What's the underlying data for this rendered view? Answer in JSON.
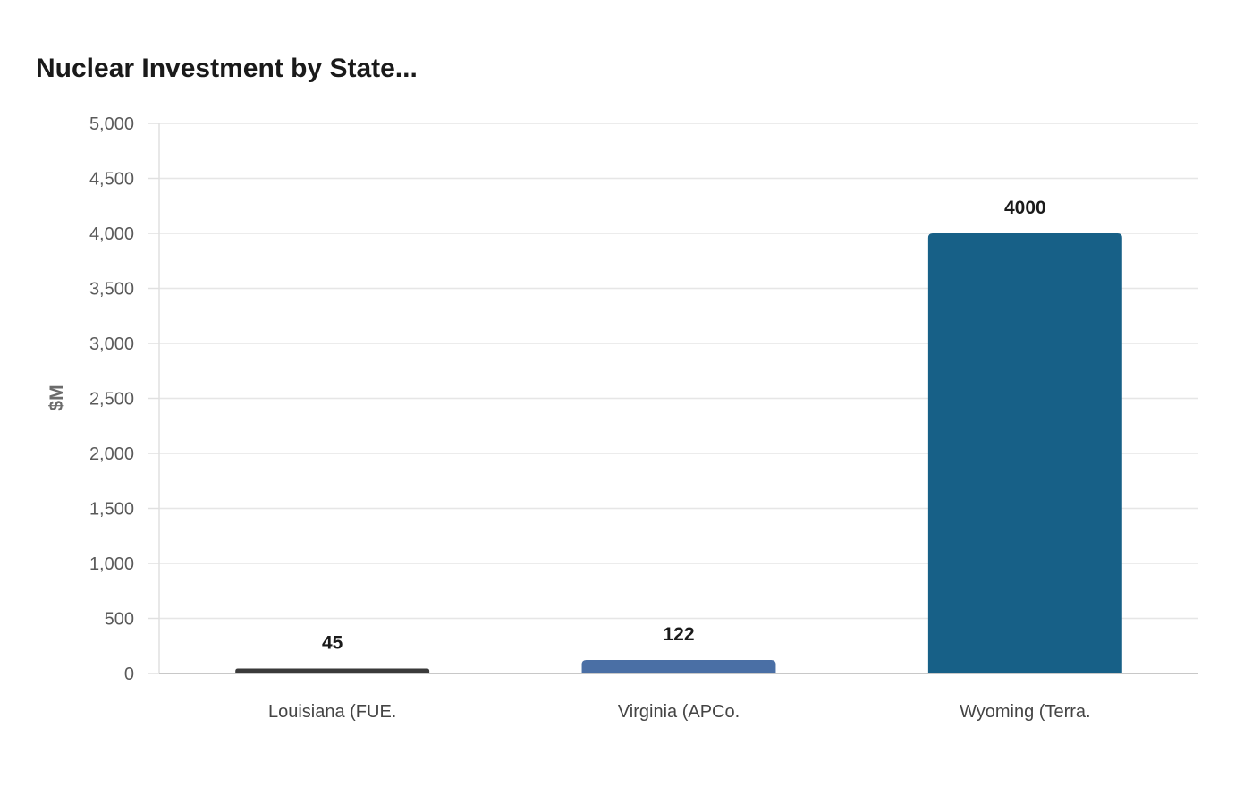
{
  "chart_data": {
    "type": "bar",
    "title": "Nuclear Investment by State...",
    "ylabel": "$M",
    "xlabel": "",
    "ylim": [
      0,
      5000
    ],
    "yticks": [
      0,
      500,
      1000,
      1500,
      2000,
      2500,
      3000,
      3500,
      4000,
      4500,
      5000
    ],
    "ytick_labels": [
      "0",
      "500",
      "1,000",
      "1,500",
      "2,000",
      "2,500",
      "3,000",
      "3,500",
      "4,000",
      "4,500",
      "5,000"
    ],
    "categories": [
      "Louisiana (FUE.",
      "Virginia (APCo.",
      "Wyoming (Terra."
    ],
    "values": [
      45,
      122,
      4000
    ],
    "data_labels": [
      "45",
      "122",
      "4000"
    ],
    "colors": [
      "#3a3a3a",
      "#4a6fa5",
      "#176087"
    ],
    "grid": true,
    "legend": "none"
  }
}
